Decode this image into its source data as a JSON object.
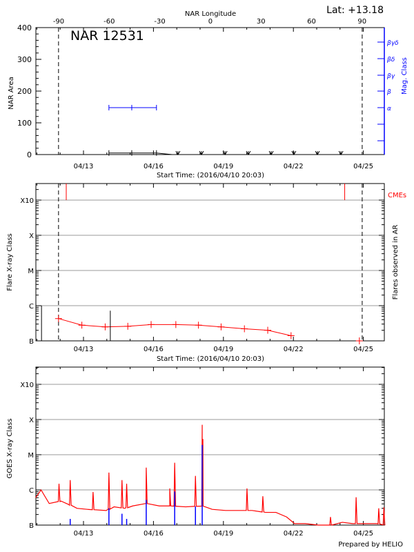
{
  "chart_data": [
    {
      "type": "line",
      "title": "NAR 12531",
      "top_axis_label": "NAR Longitude",
      "top_ticks": [
        "-90",
        "-60",
        "-30",
        "0",
        "30",
        "60",
        "90"
      ],
      "latitude_label": "Lat: +13.18",
      "ylabel": "NAR Area",
      "ylim": [
        0,
        400
      ],
      "yticks": [
        "0",
        "100",
        "200",
        "300",
        "400"
      ],
      "right_axis_label": "Mag. Class",
      "right_ticks": [
        "α",
        "β",
        "βγ",
        "βδ",
        "βγδ"
      ],
      "xlabel": "Start Time: (2016/04/10 20:03)",
      "xticks": [
        "04/13",
        "04/16",
        "04/19",
        "04/22",
        "04/25"
      ],
      "limb_lines_day": [
        11.93,
        24.95
      ],
      "area_series": {
        "color": "#000000",
        "points": [
          [
            14.09,
            5
          ],
          [
            15.07,
            5
          ],
          [
            16.13,
            5
          ],
          [
            16.8,
            0
          ]
        ]
      },
      "area_zero_markers": [
        17.05,
        18.06,
        19.07,
        20.07,
        21.05,
        22.02,
        23.03,
        24.04
      ],
      "mag_class_series": {
        "color": "#0000ff",
        "class": "α",
        "days": [
          14.09,
          15.07,
          16.13
        ]
      },
      "grid": false
    },
    {
      "type": "line",
      "ylabel": "Flare X-ray Class",
      "right_axis_label": "Flares observed in AR",
      "cme_label": "CMEs",
      "yticks": [
        "B",
        "C",
        "M",
        "X",
        "X10"
      ],
      "xlabel": "Start Time: (2016/04/10 20:03)",
      "xticks": [
        "04/13",
        "04/16",
        "04/19",
        "04/22",
        "04/25"
      ],
      "limb_lines_day": [
        11.93,
        24.95
      ],
      "background_series": {
        "color": "#ff0000",
        "points": [
          [
            11.93,
            "B4.3"
          ],
          [
            12.93,
            "B2.8"
          ],
          [
            13.93,
            "B2.5"
          ],
          [
            14.9,
            "B2.6"
          ],
          [
            15.9,
            "B2.9"
          ],
          [
            16.96,
            "B2.9"
          ],
          [
            17.93,
            "B2.8"
          ],
          [
            18.9,
            "B2.5"
          ],
          [
            19.9,
            "B2.2"
          ],
          [
            20.9,
            "B2.0"
          ],
          [
            21.9,
            "B1.4"
          ]
        ]
      },
      "extra_point": [
        24.83,
        "B1.0"
      ],
      "flares": [
        [
          11.2,
          "C1.0"
        ],
        [
          14.15,
          "B7.2"
        ]
      ],
      "cmes_day": [
        12.26,
        24.2
      ],
      "grid": true
    },
    {
      "type": "line",
      "ylabel": "GOES X-ray Class",
      "yticks": [
        "B",
        "C",
        "M",
        "X",
        "X10"
      ],
      "xticks": [
        "04/13",
        "04/16",
        "04/19",
        "04/22",
        "04/25"
      ],
      "long_channel": {
        "color": "#ff0000",
        "baseline": [
          [
            10.95,
            "B6.0"
          ],
          [
            11.18,
            "C1.0"
          ],
          [
            11.53,
            "B4.1"
          ],
          [
            12.04,
            "B4.8"
          ],
          [
            12.38,
            "B3.8"
          ],
          [
            12.72,
            "B3.0"
          ],
          [
            13.17,
            "B2.8"
          ],
          [
            13.97,
            "B2.6"
          ],
          [
            14.31,
            "B3.3"
          ],
          [
            14.77,
            "B3.0"
          ],
          [
            15.11,
            "B3.5"
          ],
          [
            15.68,
            "B4.1"
          ],
          [
            16.25,
            "B3.5"
          ],
          [
            16.7,
            "B3.5"
          ],
          [
            17.38,
            "B3.3"
          ],
          [
            18.07,
            "B3.5"
          ],
          [
            18.52,
            "B2.8"
          ],
          [
            19.09,
            "B2.6"
          ],
          [
            19.66,
            "B2.6"
          ],
          [
            20.23,
            "B2.6"
          ],
          [
            20.8,
            "B2.3"
          ],
          [
            21.25,
            "B2.3"
          ],
          [
            21.71,
            "B1.7"
          ],
          [
            22.05,
            "B1.1"
          ],
          [
            22.51,
            "B1.1"
          ],
          [
            23.07,
            "B1.0"
          ],
          [
            23.64,
            "B1.0"
          ],
          [
            24.1,
            "B1.2"
          ],
          [
            24.55,
            "B1.1"
          ],
          [
            25.12,
            "B1.1"
          ],
          [
            25.58,
            "B1.1"
          ],
          [
            25.94,
            "B1.0"
          ]
        ],
        "peaks": [
          [
            11.95,
            "C1.5"
          ],
          [
            12.43,
            "C1.9"
          ],
          [
            13.41,
            "B8.7"
          ],
          [
            14.09,
            "C3.1"
          ],
          [
            14.65,
            "C1.9"
          ],
          [
            14.85,
            "C1.5"
          ],
          [
            15.69,
            "C4.3"
          ],
          [
            16.7,
            "C1.1"
          ],
          [
            16.91,
            "C5.9"
          ],
          [
            17.8,
            "C2.5"
          ],
          [
            18.09,
            "M7.1"
          ],
          [
            18.12,
            "M2.8"
          ],
          [
            20.01,
            "C1.1"
          ],
          [
            20.69,
            "B6.6"
          ],
          [
            23.59,
            "B1.7"
          ],
          [
            24.69,
            "B6.2"
          ],
          [
            25.66,
            "B3.0"
          ],
          [
            25.88,
            "B3.2"
          ]
        ]
      },
      "short_channel": {
        "color": "#0000ff",
        "peaks": [
          [
            12.43,
            "B1.5"
          ],
          [
            14.09,
            "B3.0"
          ],
          [
            14.65,
            "B2.1"
          ],
          [
            14.85,
            "B1.5"
          ],
          [
            15.69,
            "B5.2"
          ],
          [
            16.91,
            "B9.0"
          ],
          [
            17.8,
            "B3.4"
          ],
          [
            18.09,
            "M1.9"
          ]
        ]
      },
      "grid": true
    }
  ],
  "footer": "Prepared by HELIO"
}
